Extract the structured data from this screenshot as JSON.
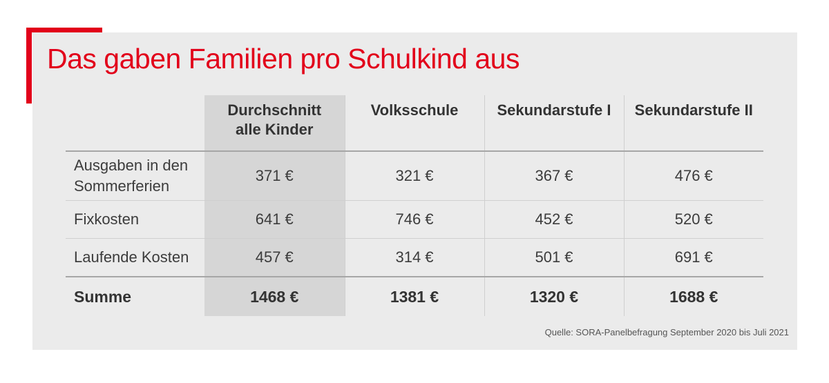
{
  "title": "Das gaben Familien pro Schulkind aus",
  "source": "Quelle: SORA-Panelbefragung September 2020 bis Juli 2021",
  "colors": {
    "accent": "#e2001a",
    "panel": "#ebebeb",
    "highlight_column": "#d6d6d6"
  },
  "chart_data": {
    "type": "table",
    "title": "Das gaben Familien pro Schulkind aus",
    "columns": [
      {
        "line1": "Durchschnitt",
        "line2": "alle Kinder"
      },
      {
        "line1": "Volksschule",
        "line2": ""
      },
      {
        "line1": "Sekundarstufe I",
        "line2": ""
      },
      {
        "line1": "Sekundarstufe II",
        "line2": ""
      }
    ],
    "rows": [
      {
        "label_line1": "Ausgaben in den",
        "label_line2": "Sommerferien",
        "values": [
          "371 €",
          "321 €",
          "367 €",
          "476 €"
        ]
      },
      {
        "label_line1": "Fixkosten",
        "label_line2": "",
        "values": [
          "641 €",
          "746 €",
          "452 €",
          "520 €"
        ]
      },
      {
        "label_line1": "Laufende Kosten",
        "label_line2": "",
        "values": [
          "457 €",
          "314 €",
          "501 €",
          "691 €"
        ]
      },
      {
        "label_line1": "Summe",
        "label_line2": "",
        "values": [
          "1468 €",
          "1381 €",
          "1320 €",
          "1688 €"
        ]
      }
    ]
  }
}
